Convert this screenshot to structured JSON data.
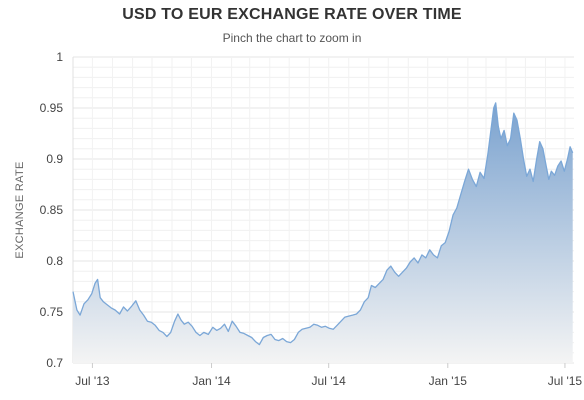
{
  "chart_data": {
    "type": "area",
    "title": "USD TO EUR EXCHANGE RATE OVER TIME",
    "subtitle": "Pinch the chart to zoom in",
    "xlabel": "",
    "ylabel": "EXCHANGE RATE",
    "ylim": [
      0.7,
      1.0
    ],
    "yticks": [
      0.7,
      0.75,
      0.8,
      0.85,
      0.9,
      0.95,
      1
    ],
    "ytick_labels": [
      "0.7",
      "0.75",
      "0.8",
      "0.85",
      "0.9",
      "0.95",
      "1"
    ],
    "xlim": [
      "2013-06-01",
      "2015-07-15"
    ],
    "xticks": [
      {
        "date": "2013-07-01",
        "label": "Jul '13"
      },
      {
        "date": "2014-01-01",
        "label": "Jan '14"
      },
      {
        "date": "2014-07-01",
        "label": "Jul '14"
      },
      {
        "date": "2015-01-01",
        "label": "Jan '15"
      },
      {
        "date": "2015-07-01",
        "label": "Jul '15"
      }
    ],
    "grid": true,
    "colors": {
      "line": "#7ba7d7",
      "fill_top": "#7aa2cf",
      "fill_bottom": "#f4f4f4",
      "grid": "#e6e6e6"
    },
    "series": [
      {
        "points": [
          [
            "2013-06-01",
            0.77
          ],
          [
            "2013-06-07",
            0.752
          ],
          [
            "2013-06-12",
            0.747
          ],
          [
            "2013-06-18",
            0.758
          ],
          [
            "2013-06-24",
            0.762
          ],
          [
            "2013-06-30",
            0.768
          ],
          [
            "2013-07-05",
            0.778
          ],
          [
            "2013-07-09",
            0.782
          ],
          [
            "2013-07-13",
            0.764
          ],
          [
            "2013-07-18",
            0.76
          ],
          [
            "2013-07-24",
            0.757
          ],
          [
            "2013-07-30",
            0.754
          ],
          [
            "2013-08-05",
            0.752
          ],
          [
            "2013-08-12",
            0.748
          ],
          [
            "2013-08-18",
            0.755
          ],
          [
            "2013-08-24",
            0.751
          ],
          [
            "2013-08-31",
            0.756
          ],
          [
            "2013-09-06",
            0.761
          ],
          [
            "2013-09-12",
            0.752
          ],
          [
            "2013-09-18",
            0.747
          ],
          [
            "2013-09-24",
            0.741
          ],
          [
            "2013-09-30",
            0.74
          ],
          [
            "2013-10-06",
            0.737
          ],
          [
            "2013-10-12",
            0.732
          ],
          [
            "2013-10-18",
            0.73
          ],
          [
            "2013-10-24",
            0.726
          ],
          [
            "2013-10-30",
            0.73
          ],
          [
            "2013-11-05",
            0.741
          ],
          [
            "2013-11-10",
            0.748
          ],
          [
            "2013-11-15",
            0.742
          ],
          [
            "2013-11-20",
            0.738
          ],
          [
            "2013-11-26",
            0.74
          ],
          [
            "2013-12-02",
            0.736
          ],
          [
            "2013-12-08",
            0.73
          ],
          [
            "2013-12-14",
            0.727
          ],
          [
            "2013-12-20",
            0.73
          ],
          [
            "2013-12-27",
            0.728
          ],
          [
            "2014-01-03",
            0.735
          ],
          [
            "2014-01-09",
            0.732
          ],
          [
            "2014-01-15",
            0.734
          ],
          [
            "2014-01-21",
            0.738
          ],
          [
            "2014-01-27",
            0.731
          ],
          [
            "2014-02-02",
            0.741
          ],
          [
            "2014-02-08",
            0.736
          ],
          [
            "2014-02-14",
            0.73
          ],
          [
            "2014-02-20",
            0.729
          ],
          [
            "2014-02-26",
            0.727
          ],
          [
            "2014-03-04",
            0.725
          ],
          [
            "2014-03-10",
            0.721
          ],
          [
            "2014-03-16",
            0.718
          ],
          [
            "2014-03-22",
            0.725
          ],
          [
            "2014-03-28",
            0.727
          ],
          [
            "2014-04-03",
            0.728
          ],
          [
            "2014-04-09",
            0.723
          ],
          [
            "2014-04-15",
            0.722
          ],
          [
            "2014-04-21",
            0.724
          ],
          [
            "2014-04-27",
            0.721
          ],
          [
            "2014-05-03",
            0.72
          ],
          [
            "2014-05-09",
            0.723
          ],
          [
            "2014-05-15",
            0.73
          ],
          [
            "2014-05-21",
            0.733
          ],
          [
            "2014-05-27",
            0.734
          ],
          [
            "2014-06-02",
            0.735
          ],
          [
            "2014-06-08",
            0.738
          ],
          [
            "2014-06-14",
            0.737
          ],
          [
            "2014-06-20",
            0.735
          ],
          [
            "2014-06-26",
            0.736
          ],
          [
            "2014-07-02",
            0.734
          ],
          [
            "2014-07-08",
            0.733
          ],
          [
            "2014-07-14",
            0.737
          ],
          [
            "2014-07-20",
            0.741
          ],
          [
            "2014-07-26",
            0.745
          ],
          [
            "2014-08-01",
            0.746
          ],
          [
            "2014-08-07",
            0.747
          ],
          [
            "2014-08-13",
            0.748
          ],
          [
            "2014-08-19",
            0.752
          ],
          [
            "2014-08-25",
            0.76
          ],
          [
            "2014-08-31",
            0.764
          ],
          [
            "2014-09-05",
            0.776
          ],
          [
            "2014-09-11",
            0.774
          ],
          [
            "2014-09-17",
            0.778
          ],
          [
            "2014-09-23",
            0.782
          ],
          [
            "2014-09-29",
            0.791
          ],
          [
            "2014-10-05",
            0.795
          ],
          [
            "2014-10-11",
            0.789
          ],
          [
            "2014-10-17",
            0.785
          ],
          [
            "2014-10-23",
            0.789
          ],
          [
            "2014-10-29",
            0.793
          ],
          [
            "2014-11-04",
            0.799
          ],
          [
            "2014-11-10",
            0.803
          ],
          [
            "2014-11-16",
            0.798
          ],
          [
            "2014-11-22",
            0.806
          ],
          [
            "2014-11-28",
            0.803
          ],
          [
            "2014-12-04",
            0.811
          ],
          [
            "2014-12-10",
            0.806
          ],
          [
            "2014-12-16",
            0.803
          ],
          [
            "2014-12-22",
            0.815
          ],
          [
            "2014-12-28",
            0.818
          ],
          [
            "2015-01-03",
            0.829
          ],
          [
            "2015-01-09",
            0.845
          ],
          [
            "2015-01-15",
            0.852
          ],
          [
            "2015-01-21",
            0.865
          ],
          [
            "2015-01-27",
            0.878
          ],
          [
            "2015-02-02",
            0.89
          ],
          [
            "2015-02-08",
            0.88
          ],
          [
            "2015-02-14",
            0.873
          ],
          [
            "2015-02-20",
            0.887
          ],
          [
            "2015-02-26",
            0.881
          ],
          [
            "2015-03-04",
            0.905
          ],
          [
            "2015-03-10",
            0.935
          ],
          [
            "2015-03-13",
            0.95
          ],
          [
            "2015-03-16",
            0.955
          ],
          [
            "2015-03-20",
            0.932
          ],
          [
            "2015-03-24",
            0.92
          ],
          [
            "2015-03-29",
            0.928
          ],
          [
            "2015-04-03",
            0.913
          ],
          [
            "2015-04-08",
            0.92
          ],
          [
            "2015-04-13",
            0.945
          ],
          [
            "2015-04-18",
            0.938
          ],
          [
            "2015-04-23",
            0.92
          ],
          [
            "2015-04-28",
            0.9
          ],
          [
            "2015-05-03",
            0.883
          ],
          [
            "2015-05-08",
            0.89
          ],
          [
            "2015-05-13",
            0.878
          ],
          [
            "2015-05-18",
            0.899
          ],
          [
            "2015-05-23",
            0.917
          ],
          [
            "2015-05-28",
            0.91
          ],
          [
            "2015-06-02",
            0.893
          ],
          [
            "2015-06-06",
            0.88
          ],
          [
            "2015-06-10",
            0.888
          ],
          [
            "2015-06-15",
            0.884
          ],
          [
            "2015-06-20",
            0.893
          ],
          [
            "2015-06-25",
            0.898
          ],
          [
            "2015-06-30",
            0.888
          ],
          [
            "2015-07-05",
            0.9
          ],
          [
            "2015-07-09",
            0.912
          ],
          [
            "2015-07-13",
            0.906
          ]
        ]
      }
    ]
  }
}
